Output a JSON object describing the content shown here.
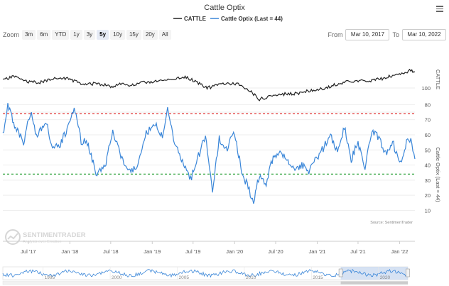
{
  "title": "Cattle Optix",
  "legend": {
    "items": [
      {
        "name": "CATTLE",
        "color": "#222222"
      },
      {
        "name": "Cattle Optix (Last = 44)",
        "color": "#3a86d8"
      }
    ]
  },
  "zoom": {
    "label": "Zoom",
    "buttons": [
      "3m",
      "6m",
      "YTD",
      "1y",
      "3y",
      "5y",
      "10y",
      "15y",
      "20y",
      "All"
    ],
    "active": "5y"
  },
  "range": {
    "from_label": "From",
    "from_value": "Mar 10, 2017",
    "to_label": "To",
    "to_value": "Mar 10, 2022"
  },
  "source": "Source: SentimenTrader",
  "watermark": {
    "name": "SENTIMENTRADER",
    "tagline": "Analysis over Emotion"
  },
  "colors": {
    "price": "#222222",
    "optix": "#3a86d8",
    "upper_line": "#e03030",
    "lower_line": "#1a9a2a",
    "navigator_fill": "#c5d6ee"
  },
  "chart_data": [
    {
      "type": "line",
      "series_name": "CATTLE",
      "ylabel": "CATTLE",
      "y_tick_labels": [
        "100"
      ],
      "x": [
        "2017-03-10",
        "2017-05-01",
        "2017-07-01",
        "2017-09-01",
        "2017-10-15",
        "2018-01-01",
        "2018-03-01",
        "2018-05-01",
        "2018-07-01",
        "2018-08-20",
        "2018-10-01",
        "2018-12-01",
        "2019-02-01",
        "2019-04-01",
        "2019-06-01",
        "2019-07-15",
        "2019-09-01",
        "2019-11-01",
        "2019-12-20",
        "2020-02-01",
        "2020-03-15",
        "2020-04-20",
        "2020-06-01",
        "2020-08-01",
        "2020-10-01",
        "2020-12-01",
        "2021-02-01",
        "2021-04-01",
        "2021-06-01",
        "2021-08-01",
        "2021-10-01",
        "2021-12-01",
        "2022-01-15",
        "2022-02-20",
        "2022-03-10"
      ],
      "values": [
        120,
        127,
        116,
        116,
        123,
        122,
        111,
        114,
        108,
        113,
        110,
        116,
        118,
        122,
        125,
        117,
        105,
        112,
        114,
        110,
        98,
        84,
        90,
        94,
        95,
        101,
        104,
        113,
        118,
        118,
        121,
        128,
        132,
        138,
        135
      ]
    },
    {
      "type": "line",
      "series_name": "Cattle Optix (Last = 44)",
      "ylabel": "Cattle Optix (Last = 44)",
      "y_tick_labels": [
        "10",
        "20",
        "30",
        "40",
        "50",
        "60",
        "70",
        "80"
      ],
      "ylim": [
        8,
        82
      ],
      "reference_lines": [
        {
          "value": 74,
          "color": "#e03030"
        },
        {
          "value": 34,
          "color": "#1a9a2a"
        }
      ],
      "x": [
        "2017-03-10",
        "2017-04-01",
        "2017-05-10",
        "2017-06-10",
        "2017-07-10",
        "2017-08-10",
        "2017-09-15",
        "2017-10-20",
        "2017-11-20",
        "2017-12-20",
        "2018-01-20",
        "2018-02-20",
        "2018-03-20",
        "2018-05-01",
        "2018-06-10",
        "2018-07-10",
        "2018-08-15",
        "2018-09-20",
        "2018-10-25",
        "2018-12-01",
        "2019-01-10",
        "2019-02-15",
        "2019-03-10",
        "2019-04-10",
        "2019-05-15",
        "2019-06-20",
        "2019-07-25",
        "2019-08-25",
        "2019-09-25",
        "2019-10-25",
        "2019-11-25",
        "2020-01-01",
        "2020-02-01",
        "2020-03-01",
        "2020-03-25",
        "2020-04-20",
        "2020-05-20",
        "2020-06-20",
        "2020-07-20",
        "2020-08-20",
        "2020-09-20",
        "2020-10-25",
        "2020-11-25",
        "2021-01-01",
        "2021-02-01",
        "2021-03-01",
        "2021-04-01",
        "2021-05-01",
        "2021-06-01",
        "2021-07-01",
        "2021-08-01",
        "2021-09-01",
        "2021-10-01",
        "2021-11-01",
        "2021-12-01",
        "2022-01-01",
        "2022-02-01",
        "2022-02-20",
        "2022-03-10"
      ],
      "values": [
        60,
        80,
        63,
        55,
        75,
        58,
        70,
        50,
        54,
        64,
        78,
        56,
        55,
        33,
        42,
        62,
        45,
        35,
        40,
        60,
        68,
        58,
        78,
        55,
        42,
        30,
        46,
        60,
        22,
        58,
        50,
        62,
        36,
        25,
        15,
        34,
        28,
        45,
        50,
        42,
        36,
        40,
        35,
        45,
        52,
        60,
        48,
        65,
        44,
        55,
        38,
        62,
        58,
        48,
        56,
        40,
        55,
        58,
        44
      ]
    }
  ],
  "x_axis": {
    "tick_labels": [
      "Jul '17",
      "Jan '18",
      "Jul '18",
      "Jan '19",
      "Jul '19",
      "Jan '20",
      "Jul '20",
      "Jan '21",
      "Jul '21",
      "Jan '22"
    ]
  },
  "navigator": {
    "tick_labels": [
      "1995",
      "2000",
      "2005",
      "2010",
      "2015",
      "2020"
    ],
    "selected_range": [
      "2017-03-10",
      "2022-03-10"
    ]
  }
}
